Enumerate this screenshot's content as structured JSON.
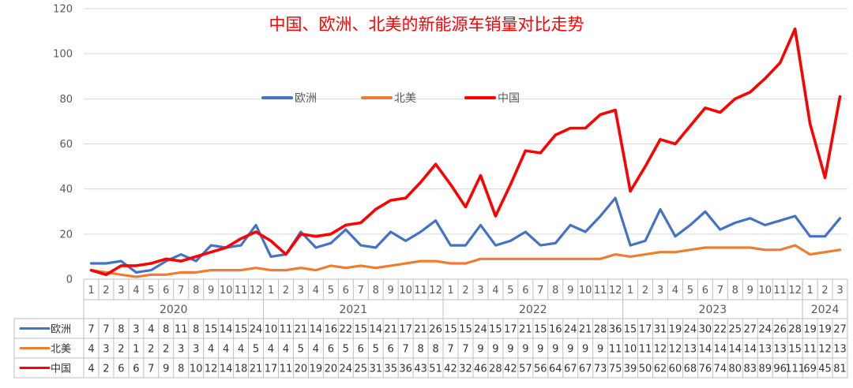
{
  "chart_data": {
    "type": "line",
    "title": "中国、欧洲、北美的新能源车销量对比走势",
    "ylim": [
      0,
      120
    ],
    "y_ticks": [
      0,
      20,
      40,
      60,
      80,
      100,
      120
    ],
    "grid": true,
    "legend_position": "top-center",
    "months": [
      "1",
      "2",
      "3",
      "4",
      "5",
      "6",
      "7",
      "8",
      "9",
      "10",
      "11",
      "12",
      "1",
      "2",
      "3",
      "4",
      "5",
      "6",
      "7",
      "8",
      "9",
      "10",
      "11",
      "12",
      "1",
      "2",
      "3",
      "4",
      "5",
      "6",
      "7",
      "8",
      "9",
      "10",
      "11",
      "12",
      "1",
      "2",
      "3",
      "4",
      "5",
      "6",
      "7",
      "8",
      "9",
      "10",
      "11",
      "12",
      "1",
      "2",
      "3"
    ],
    "years": [
      {
        "label": "2020",
        "span": 12
      },
      {
        "label": "2021",
        "span": 12
      },
      {
        "label": "2022",
        "span": 12
      },
      {
        "label": "2023",
        "span": 12
      },
      {
        "label": "2024",
        "span": 3
      }
    ],
    "series": [
      {
        "name": "欧洲",
        "color": "#4472c4",
        "values": [
          7,
          7,
          8,
          3,
          4,
          8,
          11,
          8,
          15,
          14,
          15,
          24,
          10,
          11,
          21,
          14,
          16,
          22,
          15,
          14,
          21,
          17,
          21,
          26,
          15,
          15,
          24,
          15,
          17,
          21,
          15,
          16,
          24,
          21,
          28,
          36,
          15,
          17,
          31,
          19,
          24,
          30,
          22,
          25,
          27,
          24,
          26,
          28,
          19,
          19,
          27
        ],
        "table_values": [
          "7",
          "7",
          "8",
          "3",
          "4",
          "8",
          "11",
          "8",
          "15",
          "14",
          "15",
          "24",
          "10",
          "11",
          "21",
          "14",
          "16",
          "22",
          "15",
          "14",
          "21",
          "17",
          "21",
          "26",
          "15",
          "15",
          "24",
          "15",
          "17",
          "21",
          "15",
          "16",
          "24",
          "21",
          "28",
          "36",
          "15",
          "17",
          "31",
          "19",
          "24",
          "30",
          "22",
          "25",
          "27",
          "24",
          "26",
          "28",
          "19",
          "19",
          "27"
        ]
      },
      {
        "name": "北美",
        "color": "#ed7d31",
        "values": [
          4,
          3,
          2,
          1,
          2,
          2,
          3,
          3,
          4,
          4,
          4,
          5,
          4,
          4,
          5,
          4,
          6,
          5,
          6,
          5,
          6,
          7,
          8,
          8,
          7,
          7,
          9,
          9,
          9,
          9,
          9,
          9,
          9,
          9,
          9,
          11,
          10,
          11,
          12,
          12,
          13,
          14,
          14,
          14,
          14,
          13,
          13,
          15,
          11,
          12,
          13
        ],
        "table_values": [
          "4",
          "3",
          "2",
          "1",
          "2",
          "2",
          "3",
          "3",
          "4",
          "4",
          "4",
          "5",
          "4",
          "4",
          "5",
          "4",
          "6",
          "5",
          "6",
          "5",
          "6",
          "7",
          "8",
          "8",
          "7",
          "7",
          "9",
          "9",
          "9",
          "9",
          "9",
          "9",
          "9",
          "9",
          "9",
          "11",
          "10",
          "11",
          "12",
          "12",
          "13",
          "14",
          "14",
          "14",
          "14",
          "13",
          "13",
          "15",
          "11",
          "12",
          "13"
        ]
      },
      {
        "name": "中国",
        "color": "#ff0000",
        "values": [
          4,
          2,
          6,
          6,
          7,
          9,
          8,
          10,
          12,
          14,
          18,
          21,
          17,
          11,
          20,
          19,
          20,
          24,
          25,
          31,
          35,
          36,
          43,
          51,
          42,
          32,
          46,
          28,
          42,
          57,
          56,
          64,
          67,
          67,
          73,
          75,
          39,
          50,
          62,
          60,
          68,
          76,
          74,
          80,
          83,
          89,
          96,
          111,
          69,
          45,
          81
        ],
        "table_values": [
          "4",
          "2",
          "6",
          "6",
          "7",
          "9",
          "8",
          "10",
          "12",
          "14",
          "18",
          "21",
          "17",
          "11",
          "20",
          "19",
          "20",
          "24",
          "25",
          "31",
          "35",
          "36",
          "43",
          "51",
          "42",
          "32",
          "46",
          "28",
          "42",
          "57",
          "56",
          "64",
          "67",
          "67",
          "73",
          "75",
          "39",
          "50",
          "62",
          "60",
          "68",
          "76",
          "74",
          "80",
          "83",
          "89",
          "96",
          "111",
          "69",
          "45",
          "81"
        ]
      }
    ]
  }
}
